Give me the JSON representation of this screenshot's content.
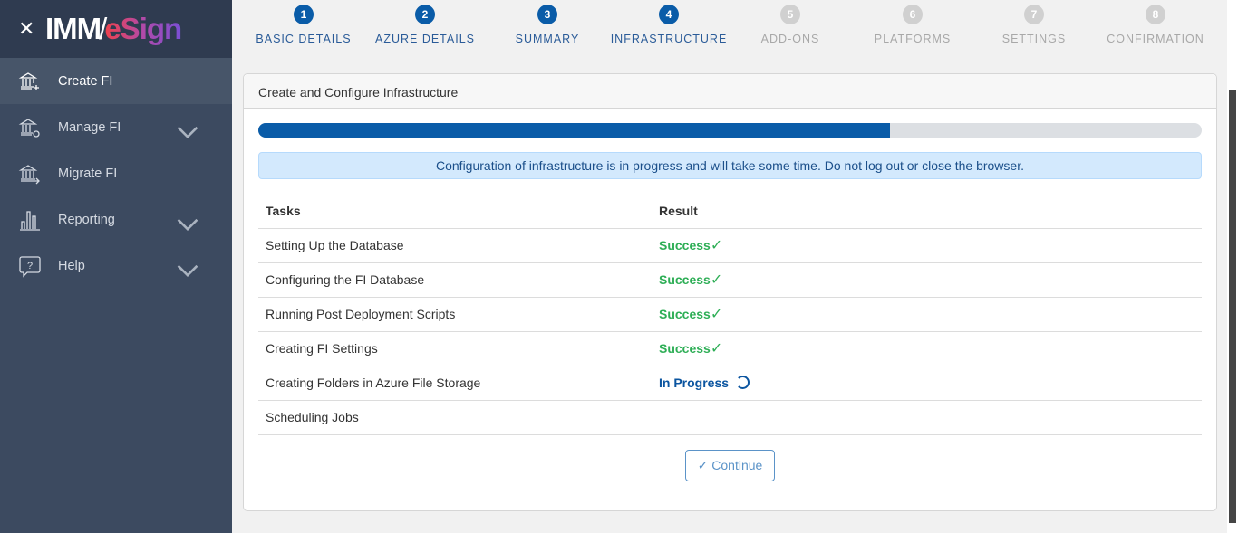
{
  "brand": {
    "close_icon": "close-icon",
    "logo_text": "IMM/eSign"
  },
  "sidebar": {
    "items": [
      {
        "label": "Create FI",
        "icon": "bank-plus-icon",
        "active": true
      },
      {
        "label": "Manage FI",
        "icon": "bank-gear-icon",
        "expandable": true
      },
      {
        "label": "Migrate FI",
        "icon": "bank-arrow-icon"
      },
      {
        "label": "Reporting",
        "icon": "bar-chart-icon",
        "expandable": true
      },
      {
        "label": "Help",
        "icon": "help-bubble-icon",
        "expandable": true
      }
    ]
  },
  "stepper": {
    "steps": [
      {
        "num": "1",
        "label": "BASIC DETAILS",
        "done": true
      },
      {
        "num": "2",
        "label": "AZURE DETAILS",
        "done": true
      },
      {
        "num": "3",
        "label": "SUMMARY",
        "done": true
      },
      {
        "num": "4",
        "label": "INFRASTRUCTURE",
        "done": true
      },
      {
        "num": "5",
        "label": "ADD-ONS",
        "done": false
      },
      {
        "num": "6",
        "label": "PLATFORMS",
        "done": false
      },
      {
        "num": "7",
        "label": "SETTINGS",
        "done": false
      },
      {
        "num": "8",
        "label": "CONFIRMATION",
        "done": false
      }
    ]
  },
  "card": {
    "title": "Create and Configure Infrastructure",
    "progress_percent": 67,
    "alert": "Configuration of infrastructure is in progress and will take some time. Do not log out or close the browser.",
    "columns": [
      "Tasks",
      "Result"
    ],
    "rows": [
      {
        "task": "Setting Up the Database",
        "result": "Success",
        "status": "success"
      },
      {
        "task": "Configuring the FI Database",
        "result": "Success",
        "status": "success"
      },
      {
        "task": "Running Post Deployment Scripts",
        "result": "Success",
        "status": "success"
      },
      {
        "task": "Creating FI Settings",
        "result": "Success",
        "status": "success"
      },
      {
        "task": "Creating Folders in Azure File Storage",
        "result": "In Progress",
        "status": "progress"
      },
      {
        "task": "Scheduling Jobs",
        "result": "",
        "status": "pending"
      }
    ],
    "continue_label": "Continue"
  },
  "colors": {
    "accent": "#0a5ca8",
    "success": "#2eae56",
    "sidebar": "#3c4a60"
  }
}
